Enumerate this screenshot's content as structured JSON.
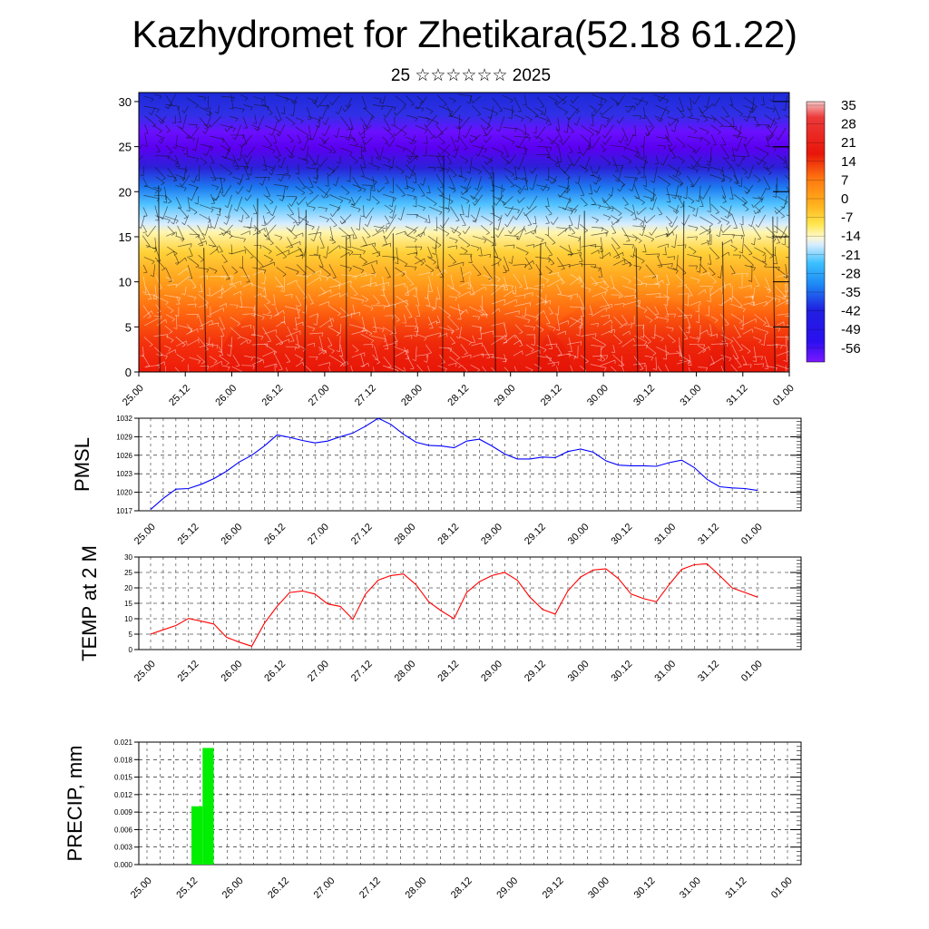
{
  "header": {
    "title": "Kazhydromet for Zhetikara(52.18 61.22)",
    "subtitle": "25 ☆☆☆☆☆☆ 2025"
  },
  "chart_data": [
    {
      "type": "heatmap",
      "name": "temperature-wind-cross-section",
      "x_ticks": [
        "25.00",
        "25.12",
        "26.00",
        "26.12",
        "27.00",
        "27.12",
        "28.00",
        "28.12",
        "29.00",
        "29.12",
        "30.00",
        "30.12",
        "31.00",
        "31.12",
        "01.00"
      ],
      "y_ticks": [
        0,
        5,
        10,
        15,
        20,
        25,
        30
      ],
      "ylim": [
        0,
        31
      ],
      "colorbar_labels": [
        "35",
        "28",
        "21",
        "14",
        "7",
        "0",
        "-7",
        "-14",
        "-21",
        "-28",
        "-35",
        "-42",
        "-49",
        "-56"
      ],
      "colorbar_range": [
        -60,
        38
      ],
      "colors": {
        "cold": "#5b00ff",
        "cool": "#1f1fe0",
        "cyan": "#26b0ff",
        "pale": "#cfe8ff",
        "yellow": "#ffe24d",
        "orange": "#ff9a1a",
        "red": "#ee1b0a",
        "hot": "#f0a6a6"
      }
    },
    {
      "type": "line",
      "name": "pmsl",
      "ylabel": "PMSL",
      "ylim": [
        1017,
        1032
      ],
      "y_ticks": [
        1017,
        1020,
        1023,
        1026,
        1029,
        1032
      ],
      "x_ticks": [
        "25.00",
        "25.12",
        "26.00",
        "26.12",
        "27.00",
        "27.12",
        "28.00",
        "28.12",
        "29.00",
        "29.12",
        "30.00",
        "30.12",
        "31.00",
        "31.12",
        "01.00"
      ],
      "x": [
        0,
        3,
        6,
        9,
        12,
        15,
        18,
        21,
        24,
        27,
        30,
        33,
        36,
        39,
        42,
        45,
        48,
        51,
        54,
        57,
        60,
        63,
        66,
        69,
        72,
        75,
        78,
        81,
        84,
        87,
        90,
        93,
        96,
        99,
        102,
        105,
        108,
        111,
        114,
        117,
        120,
        123,
        126,
        129,
        132,
        135,
        138,
        141,
        144
      ],
      "series": [
        {
          "values": [
            1017.2,
            1019.0,
            1020.5,
            1020.6,
            1021.3,
            1022.2,
            1023.4,
            1024.9,
            1026.0,
            1027.5,
            1029.3,
            1028.9,
            1028.4,
            1028.0,
            1028.3,
            1029.0,
            1029.6,
            1030.7,
            1032.0,
            1031.0,
            1029.4,
            1028.1,
            1027.6,
            1027.5,
            1027.2,
            1028.3,
            1028.6,
            1027.5,
            1026.2,
            1025.4,
            1025.4,
            1025.7,
            1025.6,
            1026.6,
            1027.0,
            1026.5,
            1025.1,
            1024.4,
            1024.3,
            1024.3,
            1024.2,
            1024.8,
            1025.2,
            1024.0,
            1022.1,
            1020.9,
            1020.7,
            1020.6,
            1020.3
          ]
        }
      ],
      "series_color": "#0000ff"
    },
    {
      "type": "line",
      "name": "temp-2m",
      "ylabel": "TEMP at 2 M",
      "ylim": [
        0,
        30
      ],
      "y_ticks": [
        0,
        5,
        10,
        15,
        20,
        25,
        30
      ],
      "x_ticks": [
        "25.00",
        "25.12",
        "26.00",
        "26.12",
        "27.00",
        "27.12",
        "28.00",
        "28.12",
        "29.00",
        "29.12",
        "30.00",
        "30.12",
        "31.00",
        "31.12",
        "01.00"
      ],
      "x": [
        0,
        3,
        6,
        9,
        12,
        15,
        18,
        21,
        24,
        27,
        30,
        33,
        36,
        39,
        42,
        45,
        48,
        51,
        54,
        57,
        60,
        63,
        66,
        69,
        72,
        75,
        78,
        81,
        84,
        87,
        90,
        93,
        96,
        99,
        102,
        105,
        108,
        111,
        114,
        117,
        120,
        123,
        126,
        129,
        132,
        135,
        138,
        141,
        144
      ],
      "series": [
        {
          "values": [
            5.0,
            6.4,
            7.8,
            10.1,
            9.2,
            8.3,
            4.0,
            2.4,
            1.1,
            8.5,
            14.0,
            18.5,
            19.0,
            18.0,
            14.8,
            14.0,
            9.8,
            18.0,
            22.5,
            24.0,
            24.5,
            21.0,
            15.5,
            12.5,
            10.0,
            18.5,
            22.0,
            24.0,
            25.0,
            22.5,
            17.0,
            13.0,
            11.5,
            19.0,
            23.5,
            25.8,
            26.2,
            23.0,
            18.0,
            16.5,
            15.5,
            21.0,
            26.0,
            27.5,
            27.8,
            24.0,
            20.0,
            18.5,
            17.0
          ]
        }
      ],
      "series_color": "#ff0000"
    },
    {
      "type": "bar",
      "name": "precip",
      "ylabel": "PRECIP, mm",
      "ylim": [
        0,
        0.021
      ],
      "y_ticks": [
        "0.000",
        "0.003",
        "0.006",
        "0.009",
        "0.012",
        "0.015",
        "0.018",
        "0.021"
      ],
      "x_ticks": [
        "25.00",
        "25.12",
        "26.00",
        "26.12",
        "27.00",
        "27.12",
        "28.00",
        "28.12",
        "29.00",
        "29.12",
        "30.00",
        "30.12",
        "31.00",
        "31.12",
        "01.00"
      ],
      "bars": [
        {
          "x_start": 10,
          "x_end": 12.5,
          "value": 0.01
        },
        {
          "x_start": 12.5,
          "x_end": 15,
          "value": 0.02
        }
      ],
      "bar_color": "#00ee00"
    }
  ]
}
